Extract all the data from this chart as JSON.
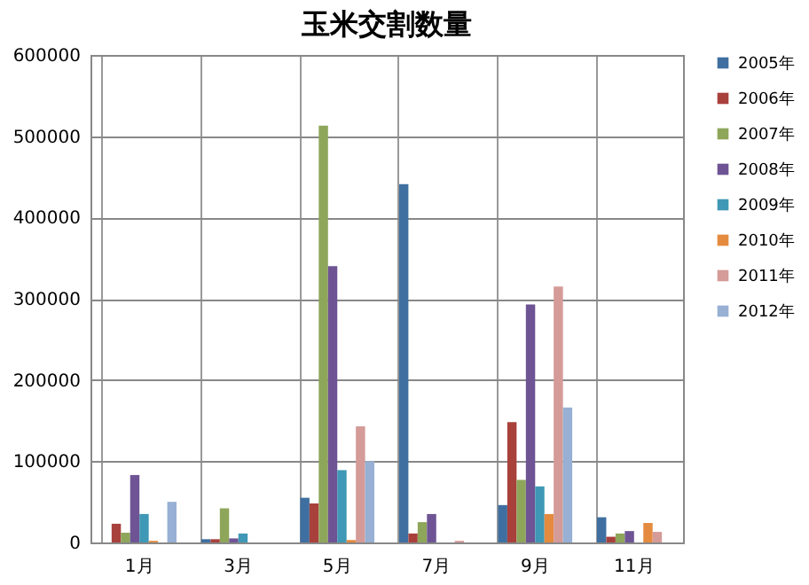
{
  "chart_data": {
    "type": "bar",
    "title": "玉米交割数量",
    "categories": [
      "1月",
      "3月",
      "5月",
      "7月",
      "9月",
      "11月"
    ],
    "series": [
      {
        "name": "2005年",
        "color": "#3f6fa0",
        "values": [
          0,
          4000,
          55000,
          441000,
          46000,
          31000
        ]
      },
      {
        "name": "2006年",
        "color": "#a8403c",
        "values": [
          23000,
          4000,
          48000,
          11000,
          148000,
          7000
        ]
      },
      {
        "name": "2007年",
        "color": "#8ea65a",
        "values": [
          12000,
          42000,
          513000,
          25000,
          77000,
          11000
        ]
      },
      {
        "name": "2008年",
        "color": "#6e5494",
        "values": [
          83000,
          5000,
          340000,
          35000,
          293000,
          14000
        ]
      },
      {
        "name": "2009年",
        "color": "#3f98b5",
        "values": [
          35000,
          11000,
          89000,
          0,
          69000,
          0
        ]
      },
      {
        "name": "2010年",
        "color": "#e48b3f",
        "values": [
          2000,
          0,
          3000,
          0,
          35000,
          24000
        ]
      },
      {
        "name": "2011年",
        "color": "#d49b98",
        "values": [
          0,
          0,
          143000,
          2000,
          315000,
          13000
        ]
      },
      {
        "name": "2012年",
        "color": "#97b0d3",
        "values": [
          50000,
          0,
          100000,
          0,
          166000,
          0
        ]
      }
    ],
    "ylim": [
      0,
      600000
    ],
    "yticks": [
      0,
      100000,
      200000,
      300000,
      400000,
      500000,
      600000
    ],
    "grid": true,
    "legend": "right"
  }
}
